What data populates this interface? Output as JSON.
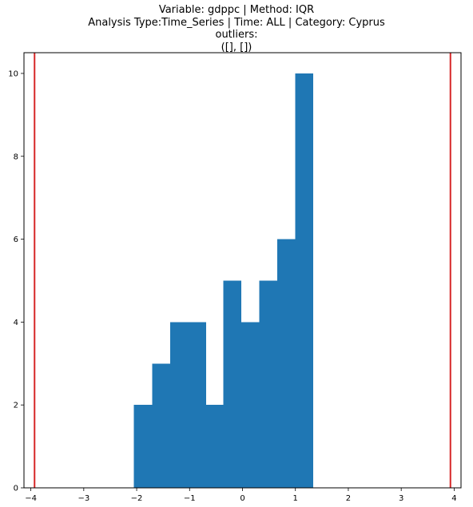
{
  "chart_data": {
    "type": "bar",
    "title_lines": [
      "Variable: gdppc | Method: IQR",
      "Analysis Type:Time_Series | Time: ALL | Category: Cyprus",
      "outliers:",
      "([], [])"
    ],
    "xlabel": "",
    "ylabel": "",
    "xlim": [
      -4.13,
      4.13
    ],
    "ylim": [
      0,
      10.5
    ],
    "x_ticks": [
      -4,
      -3,
      -2,
      -1,
      0,
      1,
      2,
      3,
      4
    ],
    "y_ticks": [
      0,
      2,
      4,
      6,
      8,
      10
    ],
    "bins": [
      {
        "start": -2.05,
        "end": -1.71,
        "count": 2
      },
      {
        "start": -1.71,
        "end": -1.37,
        "count": 3
      },
      {
        "start": -1.37,
        "end": -1.03,
        "count": 4
      },
      {
        "start": -1.03,
        "end": -0.69,
        "count": 4
      },
      {
        "start": -0.69,
        "end": -0.36,
        "count": 2
      },
      {
        "start": -0.36,
        "end": -0.02,
        "count": 5
      },
      {
        "start": -0.02,
        "end": 0.32,
        "count": 4
      },
      {
        "start": 0.32,
        "end": 0.66,
        "count": 5
      },
      {
        "start": 0.66,
        "end": 1.0,
        "count": 6
      },
      {
        "start": 1.0,
        "end": 1.34,
        "count": 10
      }
    ],
    "bar_color": "#1f77b4",
    "reference_lines": [
      {
        "x": -3.93,
        "color": "#d62728"
      },
      {
        "x": 3.93,
        "color": "#d62728"
      }
    ],
    "grid": false,
    "legend": "none"
  }
}
